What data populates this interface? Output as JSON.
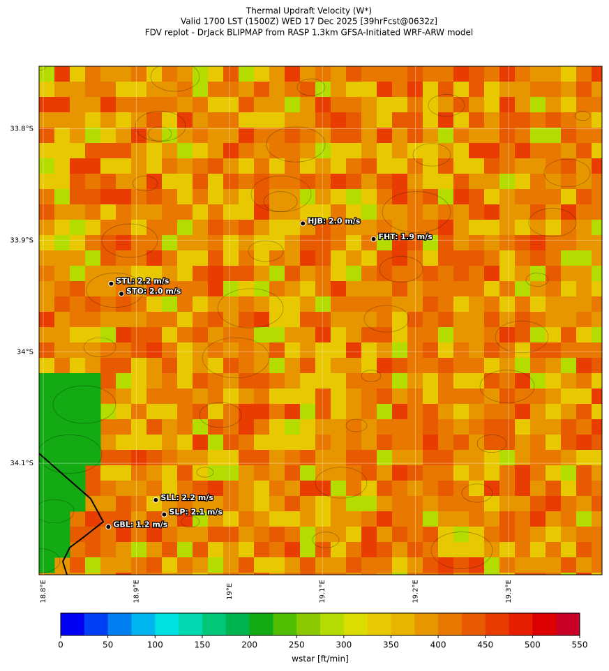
{
  "title_lines": [
    "Thermal Updraft Velocity (W*)",
    "Valid 1700 LST (1500Z) WED 17 Dec 2025 [39hrFcst@0632z]",
    "FDV replot - DrJack BLIPMAP from RASP 1.3km GFSA-Initiated WRF-ARW model"
  ],
  "map": {
    "xlim": [
      18.7955,
      19.4005
    ],
    "ylim": [
      -34.2,
      -33.744
    ],
    "xticks": [
      {
        "value": 18.8,
        "label": "18.8°E"
      },
      {
        "value": 18.9,
        "label": "18.9°E"
      },
      {
        "value": 19.0,
        "label": "19°E"
      },
      {
        "value": 19.1,
        "label": "19.1°E"
      },
      {
        "value": 19.2,
        "label": "19.2°E"
      },
      {
        "value": 19.3,
        "label": "19.3°E"
      }
    ],
    "yticks": [
      {
        "value": -33.8,
        "label": "33.8°S"
      },
      {
        "value": -33.9,
        "label": "33.9°S"
      },
      {
        "value": -34.0,
        "label": "34°S"
      },
      {
        "value": -34.1,
        "label": "34.1°S"
      }
    ],
    "stations": [
      {
        "label": "HJB: 2.0 m/s",
        "lon": 19.079,
        "lat": -33.885
      },
      {
        "label": "FHT: 1.9 m/s",
        "lon": 19.155,
        "lat": -33.899
      },
      {
        "label": "STL: 2.2 m/s",
        "lon": 18.873,
        "lat": -33.939
      },
      {
        "label": "STO: 2.0 m/s",
        "lon": 18.884,
        "lat": -33.948
      },
      {
        "label": "SLL: 2.2 m/s",
        "lon": 18.921,
        "lat": -34.133
      },
      {
        "label": "SLP: 2.1 m/s",
        "lon": 18.93,
        "lat": -34.146
      },
      {
        "label": "GBL: 1.2 m/s",
        "lon": 18.87,
        "lat": -34.157
      }
    ]
  },
  "colorbar": {
    "label": "wstar [ft/min]",
    "lim": [
      0,
      550
    ],
    "ticks": [
      0,
      50,
      100,
      150,
      200,
      250,
      300,
      350,
      400,
      450,
      500,
      550
    ],
    "colors": [
      "#0000f5",
      "#0040f5",
      "#0080f0",
      "#00b4f0",
      "#00e0e0",
      "#00d8b0",
      "#00c878",
      "#00b450",
      "#14aa14",
      "#50be00",
      "#8cc800",
      "#b4dc00",
      "#dcdc00",
      "#e8c800",
      "#e8b400",
      "#e89600",
      "#e87800",
      "#e85a00",
      "#e83c00",
      "#e81e00",
      "#dc0000",
      "#c80028"
    ]
  }
}
